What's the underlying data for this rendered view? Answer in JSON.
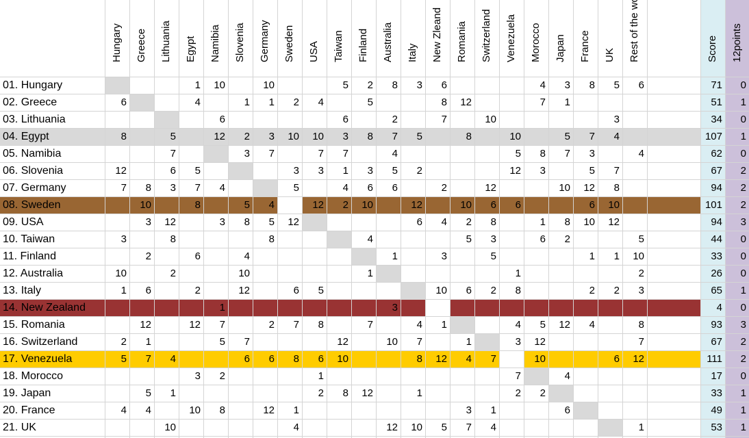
{
  "columns": [
    "Hungary",
    "Greece",
    "Lithuania",
    "Egypt",
    "Namibia",
    "Slovenia",
    "Germany",
    "Sweden",
    "USA",
    "Taiwan",
    "Finland",
    "Australia",
    "Italy",
    "New Zleand",
    "Romania",
    "Switzerland",
    "Venezuela",
    "Morocco",
    "Japan",
    "France",
    "UK",
    "Rest of the world"
  ],
  "score_header": "Score",
  "points_header": "12points",
  "colors": {
    "score_col": "#daeef3",
    "points_col": "#ccc0da",
    "diag": "#d9d9d9",
    "egypt": "#d9d9d9",
    "sweden": "#996633",
    "new_zealand": "#993333",
    "venezuela": "#ffcc00"
  },
  "rows": [
    {
      "label": "01. Hungary",
      "values": [
        "",
        "",
        "",
        "1",
        "10",
        "",
        "10",
        "",
        "",
        "5",
        "2",
        "8",
        "3",
        "6",
        "",
        "",
        "",
        "4",
        "3",
        "8",
        "5",
        "6"
      ],
      "score": "71",
      "points": "0"
    },
    {
      "label": "02. Greece",
      "values": [
        "6",
        "",
        "",
        "4",
        "",
        "1",
        "1",
        "2",
        "4",
        "",
        "5",
        "",
        "",
        "8",
        "12",
        "",
        "",
        "7",
        "1",
        "",
        "",
        ""
      ],
      "score": "51",
      "points": "1"
    },
    {
      "label": "03. Lithuania",
      "values": [
        "",
        "",
        "",
        "",
        "6",
        "",
        "",
        "",
        "",
        "6",
        "",
        "2",
        "",
        "7",
        "",
        "10",
        "",
        "",
        "",
        "",
        "3",
        ""
      ],
      "score": "34",
      "points": "0"
    },
    {
      "label": "04. Egypt",
      "values": [
        "8",
        "",
        "5",
        "",
        "12",
        "2",
        "3",
        "10",
        "10",
        "3",
        "8",
        "7",
        "5",
        "",
        "8",
        "",
        "10",
        "",
        "5",
        "7",
        "4",
        ""
      ],
      "score": "107",
      "points": "1",
      "highlight": "egypt"
    },
    {
      "label": "05. Namibia",
      "values": [
        "",
        "",
        "7",
        "",
        "",
        "3",
        "7",
        "",
        "7",
        "7",
        "",
        "4",
        "",
        "",
        "",
        "",
        "5",
        "8",
        "7",
        "3",
        "",
        "4"
      ],
      "score": "62",
      "points": "0"
    },
    {
      "label": "06. Slovenia",
      "values": [
        "12",
        "",
        "6",
        "5",
        "",
        "",
        "",
        "3",
        "3",
        "1",
        "3",
        "5",
        "2",
        "",
        "",
        "",
        "12",
        "3",
        "",
        "5",
        "7",
        ""
      ],
      "score": "67",
      "points": "2"
    },
    {
      "label": "07. Germany",
      "values": [
        "7",
        "8",
        "3",
        "7",
        "4",
        "",
        "",
        "5",
        "",
        "4",
        "6",
        "6",
        "",
        "2",
        "",
        "12",
        "",
        "",
        "10",
        "12",
        "8",
        ""
      ],
      "score": "94",
      "points": "2"
    },
    {
      "label": "08. Sweden",
      "values": [
        "",
        "10",
        "",
        "8",
        "",
        "5",
        "4",
        "",
        "12",
        "2",
        "10",
        "",
        "12",
        "",
        "10",
        "6",
        "6",
        "",
        "",
        "6",
        "10",
        ""
      ],
      "score": "101",
      "points": "2",
      "highlight": "sweden"
    },
    {
      "label": "09. USA",
      "values": [
        "",
        "3",
        "12",
        "",
        "3",
        "8",
        "5",
        "12",
        "",
        "",
        "",
        "",
        "6",
        "4",
        "2",
        "8",
        "",
        "1",
        "8",
        "10",
        "12",
        ""
      ],
      "score": "94",
      "points": "3"
    },
    {
      "label": "10. Taiwan",
      "values": [
        "3",
        "",
        "8",
        "",
        "",
        "",
        "8",
        "",
        "",
        "",
        "4",
        "",
        "",
        "",
        "5",
        "3",
        "",
        "6",
        "2",
        "",
        "",
        "5"
      ],
      "score": "44",
      "points": "0"
    },
    {
      "label": "11. Finland",
      "values": [
        "",
        "2",
        "",
        "6",
        "",
        "4",
        "",
        "",
        "",
        "",
        "",
        "1",
        "",
        "3",
        "",
        "5",
        "",
        "",
        "",
        "1",
        "1",
        "10"
      ],
      "score": "33",
      "points": "0"
    },
    {
      "label": "12. Australia",
      "values": [
        "10",
        "",
        "2",
        "",
        "",
        "10",
        "",
        "",
        "",
        "",
        "1",
        "",
        "",
        "",
        "",
        "",
        "1",
        "",
        "",
        "",
        "",
        "2"
      ],
      "score": "26",
      "points": "0"
    },
    {
      "label": "13. Italy",
      "values": [
        "1",
        "6",
        "",
        "2",
        "",
        "12",
        "",
        "6",
        "5",
        "",
        "",
        "",
        "",
        "10",
        "6",
        "2",
        "8",
        "",
        "",
        "2",
        "2",
        "3"
      ],
      "score": "65",
      "points": "1"
    },
    {
      "label": "14. New Zealand",
      "values": [
        "",
        "",
        "",
        "",
        "1",
        "",
        "",
        "",
        "",
        "",
        "",
        "3",
        "",
        "",
        "",
        "",
        "",
        "",
        "",
        "",
        "",
        ""
      ],
      "score": "4",
      "points": "0",
      "highlight": "new_zealand"
    },
    {
      "label": "15. Romania",
      "values": [
        "",
        "12",
        "",
        "12",
        "7",
        "",
        "2",
        "7",
        "8",
        "",
        "7",
        "",
        "4",
        "1",
        "",
        "",
        "4",
        "5",
        "12",
        "4",
        "",
        "8"
      ],
      "score": "93",
      "points": "3"
    },
    {
      "label": "16. Switzerland",
      "values": [
        "2",
        "1",
        "",
        "",
        "5",
        "7",
        "",
        "",
        "",
        "12",
        "",
        "10",
        "7",
        "",
        "1",
        "",
        "3",
        "12",
        "",
        "",
        "",
        "7"
      ],
      "score": "67",
      "points": "2"
    },
    {
      "label": "17. Venezuela",
      "values": [
        "5",
        "7",
        "4",
        "",
        "",
        "6",
        "6",
        "8",
        "6",
        "10",
        "",
        "",
        "8",
        "12",
        "4",
        "7",
        "",
        "10",
        "",
        "",
        "6",
        "12"
      ],
      "score": "111",
      "points": "2",
      "highlight": "venezuela"
    },
    {
      "label": "18. Morocco",
      "values": [
        "",
        "",
        "",
        "3",
        "2",
        "",
        "",
        "",
        "1",
        "",
        "",
        "",
        "",
        "",
        "",
        "",
        "7",
        "",
        "4",
        "",
        "",
        ""
      ],
      "score": "17",
      "points": "0"
    },
    {
      "label": "19. Japan",
      "values": [
        "",
        "5",
        "1",
        "",
        "",
        "",
        "",
        "",
        "2",
        "8",
        "12",
        "",
        "1",
        "",
        "",
        "",
        "2",
        "2",
        "",
        "",
        "",
        ""
      ],
      "score": "33",
      "points": "1"
    },
    {
      "label": "20. France",
      "values": [
        "4",
        "4",
        "",
        "10",
        "8",
        "",
        "12",
        "1",
        "",
        "",
        "",
        "",
        "",
        "",
        "3",
        "1",
        "",
        "",
        "6",
        "",
        "",
        ""
      ],
      "score": "49",
      "points": "1"
    },
    {
      "label": "21. UK",
      "values": [
        "",
        "",
        "10",
        "",
        "",
        "",
        "",
        "4",
        "",
        "",
        "",
        "12",
        "10",
        "5",
        "7",
        "4",
        "",
        "",
        "",
        "",
        "",
        "1"
      ],
      "score": "53",
      "points": "1"
    }
  ]
}
